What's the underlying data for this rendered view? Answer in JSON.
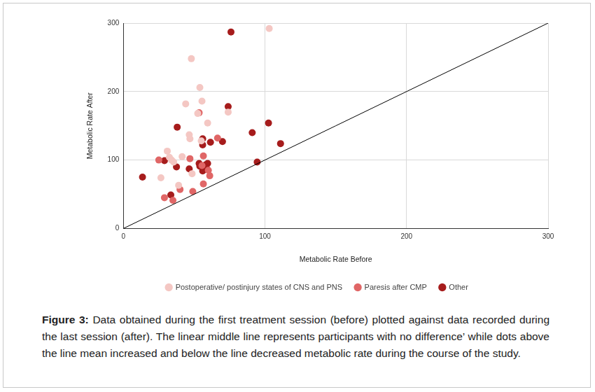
{
  "chart_data": {
    "type": "scatter",
    "x_label": "Metabolic Rate Before",
    "y_label": "Metabolic Rate After",
    "xlim": [
      0,
      300
    ],
    "ylim": [
      0,
      300
    ],
    "xticks": [
      0,
      100,
      200,
      300
    ],
    "yticks": [
      0,
      100,
      200,
      300
    ],
    "grid": true,
    "legend": "bottom",
    "reference_line": {
      "x": [
        0,
        300
      ],
      "y": [
        0,
        300
      ],
      "color": "#000000"
    },
    "series": [
      {
        "name": "Postoperative/ postinjury states of CNS and PNS",
        "color": "#f4c7c3",
        "marker": "circle",
        "x": [
          103,
          48,
          54,
          55.5,
          44,
          59.5,
          52.5,
          74,
          46.5,
          47,
          31,
          41.5,
          32.5,
          34,
          35.5,
          26.5,
          39,
          48.5,
          55
        ],
        "values": [
          292,
          248,
          206,
          186,
          182,
          154,
          168,
          170,
          137,
          131,
          113,
          105,
          104,
          100,
          97,
          74,
          63,
          80,
          128
        ]
      },
      {
        "name": "Paresis after CMP",
        "color": "#e06666",
        "marker": "circle",
        "x": [
          53.5,
          25,
          47,
          56.5,
          66.5,
          60,
          61,
          56.5,
          40,
          29,
          49,
          35,
          55.5
        ],
        "values": [
          169,
          100,
          102,
          106,
          132,
          85,
          77,
          65,
          57,
          45,
          54,
          41,
          92
        ]
      },
      {
        "name": "Other",
        "color": "#a61c1c",
        "marker": "circle",
        "x": [
          76,
          74,
          102.5,
          111,
          91,
          94.5,
          38,
          56,
          56,
          61.5,
          70,
          29,
          37.5,
          13.5,
          33.5,
          46.5,
          53.5,
          59.5,
          58,
          54,
          56,
          58.5
        ],
        "values": [
          287,
          178,
          154,
          124,
          140,
          97,
          148,
          131,
          122,
          126,
          127,
          99,
          90,
          75,
          49,
          87,
          95,
          95,
          93,
          91,
          84,
          89
        ]
      }
    ],
    "caption_label": "Figure 3:",
    "caption": "Data obtained during the first treatment session (before) plotted against data recorded during the last session (after). The linear middle line represents participants with no difference’ while dots above the line mean increased and below the line decreased metabolic rate during the course of the study."
  }
}
